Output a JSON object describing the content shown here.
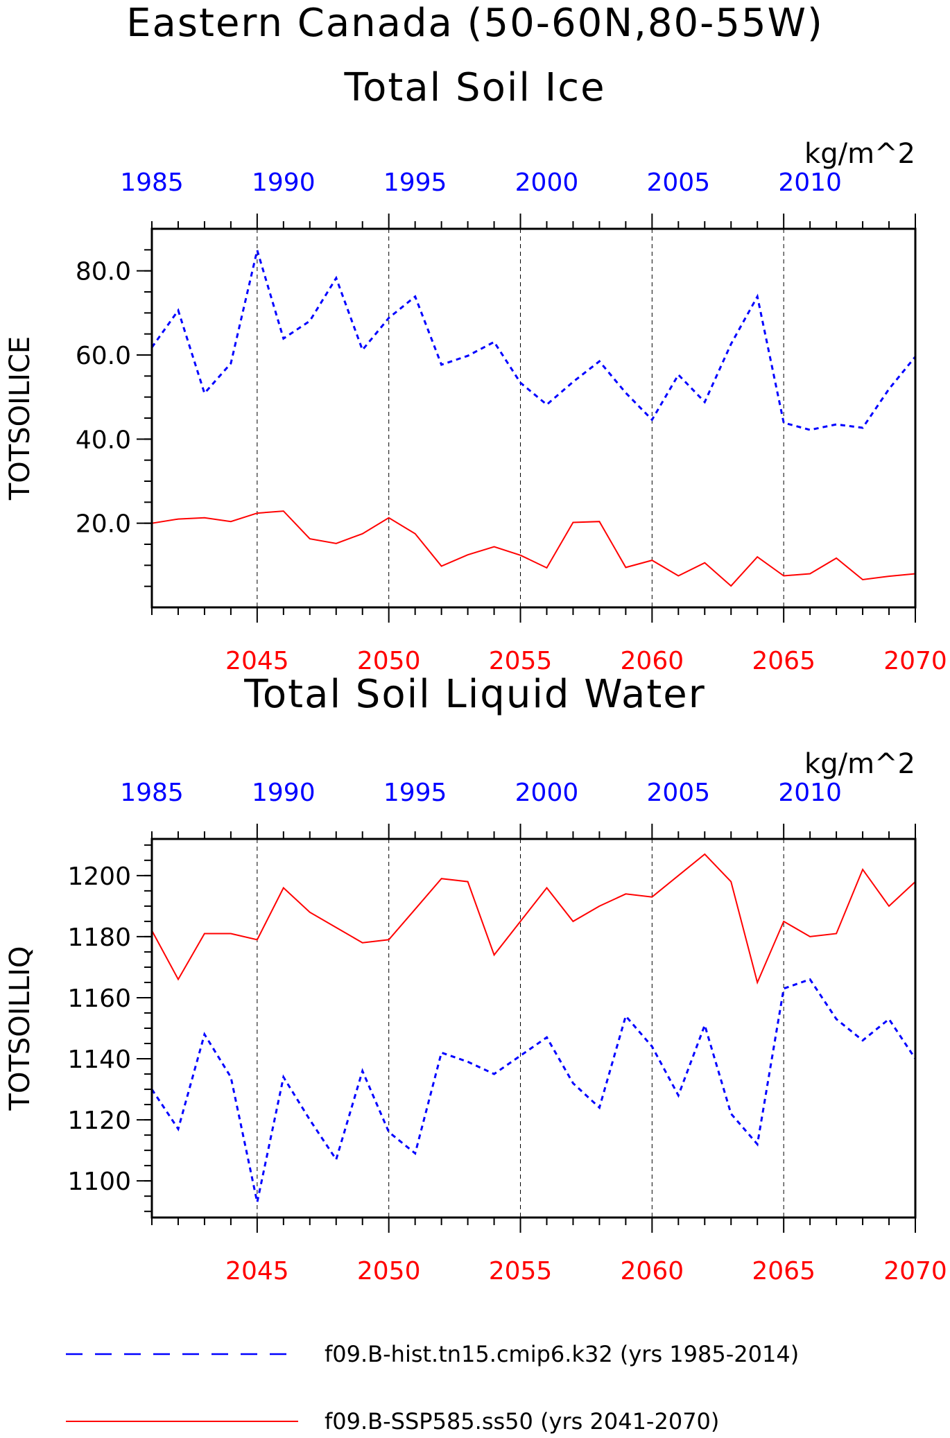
{
  "header": {
    "title_line1": "Eastern Canada (50-60N,80-55W)"
  },
  "chart_data": [
    {
      "type": "line",
      "title": "Total Soil Ice",
      "ylabel": "TOTSOILICE",
      "units": "kg/m^2",
      "ylim": [
        0,
        90
      ],
      "yticks": [
        20,
        40,
        60,
        80
      ],
      "ytick_labels": [
        "20.0",
        "40.0",
        "60.0",
        "80.0"
      ],
      "yminor_step": 5,
      "x_top_ticks": [
        1985,
        1990,
        1995,
        2000,
        2005,
        2010
      ],
      "x_bottom_ticks": [
        2045,
        2050,
        2055,
        2060,
        2065,
        2070
      ],
      "grid": "dashed vertical lines at bottom-axis major ticks",
      "series": [
        {
          "name": "f09.B-hist.tn15.cmip6.k32 (yrs 1985-2014)",
          "color": "#0000ff",
          "style": "dashed",
          "x": [
            1985,
            1986,
            1987,
            1988,
            1989,
            1990,
            1991,
            1992,
            1993,
            1994,
            1995,
            1996,
            1997,
            1998,
            1999,
            2000,
            2001,
            2002,
            2003,
            2004,
            2005,
            2006,
            2007,
            2008,
            2009,
            2010,
            2011,
            2012,
            2013,
            2014
          ],
          "values": [
            61.8,
            70.6,
            50.9,
            58.0,
            84.9,
            63.9,
            68.1,
            78.3,
            61.2,
            68.8,
            73.9,
            57.7,
            59.8,
            63.1,
            53.4,
            48.2,
            53.6,
            58.5,
            51.0,
            44.6,
            55.3,
            48.8,
            62.6,
            73.9,
            43.9,
            42.2,
            43.5,
            42.7,
            51.9,
            59.6
          ]
        },
        {
          "name": "f09.B-SSP585.ss50 (yrs 2041-2070)",
          "color": "#ff0000",
          "style": "solid",
          "x": [
            2041,
            2042,
            2043,
            2044,
            2045,
            2046,
            2047,
            2048,
            2049,
            2050,
            2051,
            2052,
            2053,
            2054,
            2055,
            2056,
            2057,
            2058,
            2059,
            2060,
            2061,
            2062,
            2063,
            2064,
            2065,
            2066,
            2067,
            2068,
            2069,
            2070
          ],
          "values": [
            20.0,
            21.0,
            21.3,
            20.4,
            22.4,
            22.9,
            16.3,
            15.2,
            17.5,
            21.3,
            17.5,
            9.8,
            12.5,
            14.4,
            12.4,
            9.4,
            20.2,
            20.4,
            9.5,
            11.2,
            7.5,
            10.6,
            5.1,
            12.0,
            7.5,
            8.0,
            11.7,
            6.6,
            7.4,
            8.0
          ]
        }
      ]
    },
    {
      "type": "line",
      "title": "Total Soil Liquid Water",
      "ylabel": "TOTSOILLIQ",
      "units": "kg/m^2",
      "ylim": [
        1088,
        1212
      ],
      "yticks": [
        1100,
        1120,
        1140,
        1160,
        1180,
        1200
      ],
      "ytick_labels": [
        "1100",
        "1120",
        "1140",
        "1160",
        "1180",
        "1200"
      ],
      "yminor_step": 5,
      "x_top_ticks": [
        1985,
        1990,
        1995,
        2000,
        2005,
        2010
      ],
      "x_bottom_ticks": [
        2045,
        2050,
        2055,
        2060,
        2065,
        2070
      ],
      "grid": "dashed vertical lines at bottom-axis major ticks",
      "series": [
        {
          "name": "f09.B-hist.tn15.cmip6.k32 (yrs 1985-2014)",
          "color": "#0000ff",
          "style": "dashed",
          "x": [
            1985,
            1986,
            1987,
            1988,
            1989,
            1990,
            1991,
            1992,
            1993,
            1994,
            1995,
            1996,
            1997,
            1998,
            1999,
            2000,
            2001,
            2002,
            2003,
            2004,
            2005,
            2006,
            2007,
            2008,
            2009,
            2010,
            2011,
            2012,
            2013,
            2014
          ],
          "values": [
            1130,
            1117,
            1148,
            1134,
            1093,
            1134,
            1120,
            1107,
            1136,
            1116,
            1109,
            1142,
            1139,
            1135,
            1141,
            1147,
            1132,
            1124,
            1154,
            1144,
            1128,
            1151,
            1122,
            1112,
            1163,
            1166,
            1153,
            1146,
            1153,
            1140
          ]
        },
        {
          "name": "f09.B-SSP585.ss50 (yrs 2041-2070)",
          "color": "#ff0000",
          "style": "solid",
          "x": [
            2041,
            2042,
            2043,
            2044,
            2045,
            2046,
            2047,
            2048,
            2049,
            2050,
            2051,
            2052,
            2053,
            2054,
            2055,
            2056,
            2057,
            2058,
            2059,
            2060,
            2061,
            2062,
            2063,
            2064,
            2065,
            2066,
            2067,
            2068,
            2069,
            2070
          ],
          "values": [
            1182,
            1166,
            1181,
            1181,
            1179,
            1196,
            1188,
            1183,
            1178,
            1179,
            1189,
            1199,
            1198,
            1174,
            1185,
            1196,
            1185,
            1190,
            1194,
            1193,
            1200,
            1207,
            1198,
            1165,
            1185,
            1180,
            1181,
            1202,
            1190,
            1198
          ]
        }
      ]
    }
  ],
  "legend": {
    "placement": "bottom",
    "items": [
      {
        "label": "f09.B-hist.tn15.cmip6.k32 (yrs 1985-2014)",
        "color": "#0000ff",
        "style": "dashed"
      },
      {
        "label": "f09.B-SSP585.ss50 (yrs 2041-2070)",
        "color": "#ff0000",
        "style": "solid"
      }
    ]
  }
}
